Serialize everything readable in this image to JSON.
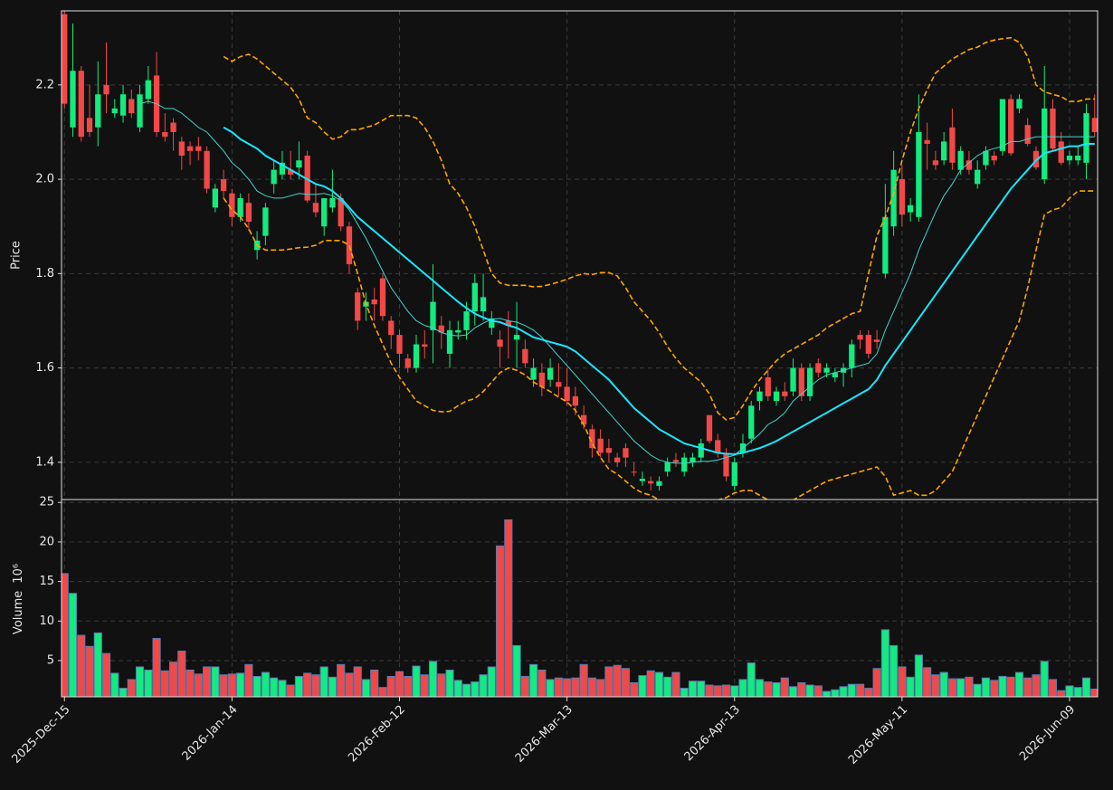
{
  "chart_data": {
    "type": "candlestick",
    "ylabel": "Price",
    "volume_label": "Volume",
    "volume_exponent": "10⁶",
    "categories": [
      "2025-Dec-15",
      null,
      null,
      null,
      null,
      null,
      null,
      null,
      null,
      null,
      null,
      null,
      null,
      null,
      null,
      null,
      null,
      null,
      null,
      null,
      "2026-Jan-14",
      null,
      null,
      null,
      null,
      null,
      null,
      null,
      null,
      null,
      null,
      null,
      null,
      null,
      null,
      null,
      null,
      null,
      null,
      null,
      "2026-Feb-12",
      null,
      null,
      null,
      null,
      null,
      null,
      null,
      null,
      null,
      null,
      null,
      null,
      null,
      null,
      null,
      null,
      null,
      null,
      null,
      "2026-Mar-13",
      null,
      null,
      null,
      null,
      null,
      null,
      null,
      null,
      null,
      null,
      null,
      null,
      null,
      null,
      null,
      null,
      null,
      null,
      null,
      "2026-Apr-13",
      null,
      null,
      null,
      null,
      null,
      null,
      null,
      null,
      null,
      null,
      null,
      null,
      null,
      null,
      null,
      null,
      null,
      null,
      null,
      "2026-May-11",
      null,
      null,
      null,
      null,
      null,
      null,
      null,
      null,
      null,
      null,
      null,
      null,
      null,
      null,
      null,
      null,
      null,
      null,
      null,
      "2026-Jun-09",
      null,
      null,
      null
    ],
    "open": [
      2.35,
      2.11,
      2.23,
      2.13,
      2.11,
      2.2,
      2.14,
      2.135,
      2.17,
      2.11,
      2.17,
      2.22,
      2.1,
      2.12,
      2.08,
      2.07,
      2.07,
      2.06,
      1.94,
      2,
      1.97,
      1.92,
      1.95,
      1.85,
      1.88,
      1.99,
      2.01,
      2.02,
      2.025,
      2.05,
      1.95,
      1.9,
      1.94,
      1.96,
      1.9,
      1.76,
      1.73,
      1.745,
      1.79,
      1.7,
      1.67,
      1.62,
      1.6,
      1.65,
      1.68,
      1.69,
      1.63,
      1.675,
      1.68,
      1.72,
      1.72,
      1.685,
      1.66,
      1.7,
      1.66,
      1.64,
      1.575,
      1.59,
      1.575,
      1.57,
      1.56,
      1.54,
      1.5,
      1.47,
      1.45,
      1.43,
      1.41,
      1.43,
      1.38,
      1.36,
      1.36,
      1.35,
      1.38,
      1.405,
      1.38,
      1.4,
      1.41,
      1.5,
      1.447,
      1.42,
      1.35,
      1.42,
      1.45,
      1.53,
      1.58,
      1.53,
      1.55,
      1.55,
      1.6,
      1.54,
      1.61,
      1.59,
      1.58,
      1.59,
      1.6,
      1.67,
      1.67,
      1.66,
      1.8,
      1.9,
      2,
      1.93,
      1.92,
      2.083,
      2.04,
      2.04,
      2.11,
      2.02,
      2.04,
      1.99,
      2.03,
      2.05,
      2.06,
      2.17,
      2.15,
      2.115,
      2.06,
      2,
      2.15,
      2.08,
      2.04,
      2.04,
      2.035,
      2.13
    ],
    "high": [
      2.36,
      2.33,
      2.24,
      2.2,
      2.25,
      2.29,
      2.17,
      2.2,
      2.19,
      2.2,
      2.24,
      2.27,
      2.14,
      2.13,
      2.09,
      2.08,
      2.09,
      2.07,
      1.99,
      2.02,
      1.98,
      1.97,
      1.97,
      1.89,
      1.95,
      2.04,
      2.06,
      2.06,
      2.08,
      2.06,
      1.99,
      1.96,
      2.02,
      1.97,
      1.91,
      1.77,
      1.76,
      1.77,
      1.8,
      1.71,
      1.68,
      1.63,
      1.67,
      1.68,
      1.82,
      1.71,
      1.7,
      1.7,
      1.74,
      1.8,
      1.8,
      1.72,
      1.68,
      1.72,
      1.74,
      1.66,
      1.62,
      1.61,
      1.62,
      1.61,
      1.6,
      1.56,
      1.52,
      1.48,
      1.47,
      1.45,
      1.42,
      1.44,
      1.4,
      1.38,
      1.37,
      1.37,
      1.41,
      1.42,
      1.42,
      1.42,
      1.45,
      1.5,
      1.46,
      1.43,
      1.41,
      1.46,
      1.53,
      1.56,
      1.6,
      1.56,
      1.57,
      1.62,
      1.61,
      1.61,
      1.62,
      1.61,
      1.6,
      1.61,
      1.66,
      1.68,
      1.68,
      1.68,
      1.99,
      2.06,
      2.03,
      1.96,
      2.18,
      2.12,
      2.06,
      2.1,
      2.15,
      2.07,
      2.06,
      2.04,
      2.07,
      2.06,
      2.17,
      2.18,
      2.18,
      2.13,
      2.07,
      2.24,
      2.17,
      2.1,
      2.06,
      2.07,
      2.16,
      2.18
    ],
    "low": [
      2.15,
      2.09,
      2.08,
      2.09,
      2.07,
      2.14,
      2.13,
      2.12,
      2.13,
      2.1,
      2.16,
      2.09,
      2.08,
      2.06,
      2.02,
      2.03,
      2.04,
      1.97,
      1.93,
      1.96,
      1.9,
      1.91,
      1.89,
      1.83,
      1.86,
      1.97,
      2,
      2,
      2,
      1.95,
      1.92,
      1.88,
      1.93,
      1.89,
      1.8,
      1.68,
      1.7,
      1.7,
      1.7,
      1.64,
      1.6,
      1.59,
      1.59,
      1.62,
      1.61,
      1.64,
      1.6,
      1.66,
      1.66,
      1.69,
      1.7,
      1.67,
      1.6,
      1.62,
      1.6,
      1.6,
      1.56,
      1.54,
      1.56,
      1.54,
      1.52,
      1.5,
      1.47,
      1.41,
      1.41,
      1.4,
      1.39,
      1.39,
      1.37,
      1.35,
      1.34,
      1.34,
      1.37,
      1.39,
      1.37,
      1.39,
      1.4,
      1.44,
      1.41,
      1.36,
      1.34,
      1.41,
      1.44,
      1.51,
      1.53,
      1.52,
      1.53,
      1.54,
      1.53,
      1.53,
      1.58,
      1.58,
      1.57,
      1.56,
      1.58,
      1.64,
      1.62,
      1.64,
      1.79,
      1.88,
      1.9,
      1.91,
      1.91,
      2.02,
      2.02,
      2.03,
      2.02,
      2.01,
      2.01,
      1.98,
      2.02,
      2.03,
      2.05,
      2.05,
      2.14,
      2.07,
      2.02,
      1.99,
      2.06,
      2.03,
      2.03,
      2.03,
      2,
      2.09
    ],
    "close": [
      2.16,
      2.23,
      2.09,
      2.1,
      2.18,
      2.18,
      2.15,
      2.18,
      2.14,
      2.18,
      2.21,
      2.1,
      2.09,
      2.1,
      2.05,
      2.06,
      2.06,
      1.98,
      1.98,
      1.975,
      1.92,
      1.96,
      1.91,
      1.87,
      1.94,
      2.02,
      2.035,
      2.01,
      2.04,
      1.955,
      1.93,
      1.96,
      1.96,
      1.9,
      1.82,
      1.7,
      1.74,
      1.735,
      1.71,
      1.67,
      1.63,
      1.6,
      1.65,
      1.645,
      1.74,
      1.675,
      1.68,
      1.68,
      1.72,
      1.78,
      1.75,
      1.705,
      1.645,
      1.69,
      1.67,
      1.61,
      1.6,
      1.56,
      1.6,
      1.56,
      1.53,
      1.52,
      1.48,
      1.43,
      1.42,
      1.42,
      1.4,
      1.41,
      1.378,
      1.365,
      1.355,
      1.36,
      1.4,
      1.4,
      1.41,
      1.41,
      1.44,
      1.445,
      1.42,
      1.37,
      1.4,
      1.44,
      1.52,
      1.55,
      1.54,
      1.55,
      1.54,
      1.6,
      1.54,
      1.6,
      1.59,
      1.6,
      1.59,
      1.6,
      1.65,
      1.66,
      1.63,
      1.655,
      1.92,
      2.02,
      1.925,
      1.945,
      2.1,
      2.075,
      2.03,
      2.08,
      2.035,
      2.06,
      2.02,
      2.02,
      2.06,
      2.04,
      2.17,
      2.055,
      2.17,
      2.075,
      2.025,
      2.15,
      2.065,
      2.035,
      2.05,
      2.05,
      2.14,
      2.1
    ],
    "volume": [
      16,
      13.5,
      8.2,
      6.8,
      8.5,
      5.9,
      3.4,
      1.5,
      2.6,
      4.2,
      3.8,
      7.8,
      3.7,
      4.8,
      6.2,
      3.8,
      3.3,
      4.2,
      4.2,
      3.2,
      3.3,
      3.4,
      4.5,
      3,
      3.5,
      2.8,
      2.5,
      1.9,
      3,
      3.4,
      3.2,
      4.2,
      2.9,
      4.5,
      3.4,
      4.2,
      2.6,
      3.8,
      1.6,
      3,
      3.6,
      3,
      4.3,
      3.2,
      4.9,
      3.3,
      3.8,
      2.5,
      2,
      2.3,
      3.2,
      4.2,
      19.5,
      22.8,
      6.9,
      3,
      4.5,
      3.8,
      2.6,
      2.8,
      2.7,
      2.8,
      4.5,
      2.8,
      2.6,
      4.2,
      4.4,
      4,
      2.2,
      3.1,
      3.7,
      3.5,
      2.9,
      3.5,
      1.5,
      2.4,
      2.4,
      1.9,
      1.8,
      1.9,
      1.8,
      2.6,
      4.7,
      2.6,
      2.3,
      2.2,
      2.8,
      1.7,
      2.2,
      1.9,
      1.8,
      1.1,
      1.3,
      1.7,
      2,
      2,
      1.5,
      4,
      8.9,
      6.9,
      4.2,
      2.9,
      5.7,
      4.1,
      3.2,
      3.5,
      2.7,
      2.7,
      2.9,
      2,
      2.8,
      2.5,
      3,
      2.9,
      3.5,
      2.8,
      3.2,
      4.9,
      2.6,
      1.2,
      1.8,
      1.6,
      2.8,
      1.4
    ],
    "series": [
      {
        "color": "#3fd6cf",
        "width": 1,
        "values": [
          null,
          null,
          null,
          null,
          null,
          null,
          null,
          null,
          null,
          2.16,
          2.165,
          2.16,
          2.15,
          2.15,
          2.14,
          2.125,
          2.11,
          2.1,
          2.08,
          2.06,
          2.035,
          2.02,
          2,
          1.975,
          1.965,
          1.96,
          1.96,
          1.965,
          1.97,
          1.968,
          1.968,
          1.97,
          1.965,
          1.955,
          1.935,
          1.905,
          1.875,
          1.84,
          1.805,
          1.77,
          1.745,
          1.72,
          1.7,
          1.69,
          1.685,
          1.675,
          1.67,
          1.668,
          1.67,
          1.685,
          1.695,
          1.703,
          1.705,
          1.7,
          1.697,
          1.69,
          1.68,
          1.665,
          1.645,
          1.625,
          1.605,
          1.585,
          1.565,
          1.545,
          1.525,
          1.505,
          1.485,
          1.465,
          1.445,
          1.43,
          1.415,
          1.405,
          1.4,
          1.398,
          1.398,
          1.4,
          1.402,
          1.402,
          1.405,
          1.41,
          1.415,
          1.43,
          1.445,
          1.46,
          1.48,
          1.49,
          1.505,
          1.53,
          1.545,
          1.56,
          1.575,
          1.585,
          1.59,
          1.595,
          1.6,
          1.605,
          1.61,
          1.63,
          1.68,
          1.72,
          1.76,
          1.8,
          1.85,
          1.89,
          1.93,
          1.965,
          1.99,
          2.02,
          2.035,
          2.05,
          2.06,
          2.065,
          2.07,
          2.08,
          2.08,
          2.085,
          2.09,
          2.09,
          2.09,
          2.09,
          2.09,
          2.09,
          2.09,
          2.09
        ]
      },
      {
        "color": "#19e6ff",
        "width": 2,
        "values": [
          null,
          null,
          null,
          null,
          null,
          null,
          null,
          null,
          null,
          null,
          null,
          null,
          null,
          null,
          null,
          null,
          null,
          null,
          null,
          2.11,
          2.1,
          2.085,
          2.075,
          2.065,
          2.05,
          2.04,
          2.03,
          2.02,
          2.01,
          2,
          1.99,
          1.985,
          1.975,
          1.96,
          1.94,
          1.92,
          1.905,
          1.89,
          1.875,
          1.86,
          1.845,
          1.83,
          1.815,
          1.8,
          1.785,
          1.77,
          1.755,
          1.74,
          1.727,
          1.715,
          1.707,
          1.7,
          1.697,
          1.69,
          1.685,
          1.675,
          1.665,
          1.66,
          1.655,
          1.65,
          1.645,
          1.635,
          1.62,
          1.605,
          1.59,
          1.575,
          1.555,
          1.535,
          1.515,
          1.5,
          1.485,
          1.47,
          1.46,
          1.45,
          1.44,
          1.435,
          1.43,
          1.425,
          1.42,
          1.418,
          1.417,
          1.42,
          1.425,
          1.43,
          1.437,
          1.445,
          1.455,
          1.465,
          1.475,
          1.485,
          1.495,
          1.505,
          1.515,
          1.525,
          1.535,
          1.545,
          1.555,
          1.575,
          1.605,
          1.63,
          1.655,
          1.68,
          1.705,
          1.73,
          1.755,
          1.78,
          1.805,
          1.83,
          1.855,
          1.88,
          1.905,
          1.93,
          1.955,
          1.98,
          2,
          2.02,
          2.04,
          2.055,
          2.06,
          2.065,
          2.07,
          2.07,
          2.075,
          2.075
        ]
      },
      {
        "color": "#ffa500",
        "width": 1.6,
        "dashed": true,
        "values": [
          null,
          null,
          null,
          null,
          null,
          null,
          null,
          null,
          null,
          null,
          null,
          null,
          null,
          null,
          null,
          null,
          null,
          null,
          null,
          2.26,
          2.25,
          2.26,
          2.265,
          2.255,
          2.24,
          2.225,
          2.21,
          2.195,
          2.17,
          2.13,
          2.12,
          2.1,
          2.085,
          2.09,
          2.105,
          2.105,
          2.11,
          2.115,
          2.125,
          2.135,
          2.135,
          2.135,
          2.13,
          2.11,
          2.08,
          2.04,
          1.99,
          1.97,
          1.94,
          1.9,
          1.85,
          1.8,
          1.78,
          1.775,
          1.775,
          1.775,
          1.772,
          1.773,
          1.777,
          1.782,
          1.788,
          1.795,
          1.8,
          1.798,
          1.802,
          1.802,
          1.795,
          1.77,
          1.74,
          1.72,
          1.7,
          1.675,
          1.645,
          1.62,
          1.6,
          1.585,
          1.57,
          1.545,
          1.505,
          1.49,
          1.495,
          1.52,
          1.55,
          1.575,
          1.595,
          1.615,
          1.63,
          1.64,
          1.65,
          1.66,
          1.67,
          1.685,
          1.695,
          1.705,
          1.715,
          1.72,
          1.8,
          1.88,
          1.92,
          1.97,
          2.04,
          2.1,
          2.15,
          2.19,
          2.225,
          2.24,
          2.255,
          2.265,
          2.275,
          2.28,
          2.29,
          2.295,
          2.298,
          2.3,
          2.29,
          2.26,
          2.2,
          2.185,
          2.18,
          2.175,
          2.165,
          2.165,
          2.17,
          2.17
        ]
      },
      {
        "color": "#ffa500",
        "width": 1.6,
        "dashed": true,
        "values": [
          null,
          null,
          null,
          null,
          null,
          null,
          null,
          null,
          null,
          null,
          null,
          null,
          null,
          null,
          null,
          null,
          null,
          null,
          null,
          1.96,
          1.935,
          1.92,
          1.895,
          1.86,
          1.85,
          1.85,
          1.85,
          1.852,
          1.855,
          1.856,
          1.86,
          1.87,
          1.87,
          1.87,
          1.86,
          1.8,
          1.735,
          1.69,
          1.65,
          1.61,
          1.58,
          1.555,
          1.53,
          1.52,
          1.51,
          1.507,
          1.508,
          1.52,
          1.53,
          1.535,
          1.55,
          1.57,
          1.59,
          1.6,
          1.595,
          1.585,
          1.57,
          1.56,
          1.55,
          1.538,
          1.528,
          1.51,
          1.48,
          1.44,
          1.41,
          1.385,
          1.375,
          1.36,
          1.345,
          1.335,
          1.33,
          1.32,
          1.31,
          1.3,
          1.29,
          1.29,
          1.3,
          1.31,
          1.32,
          1.325,
          1.335,
          1.34,
          1.34,
          1.33,
          1.32,
          1.31,
          1.315,
          1.32,
          1.33,
          1.34,
          1.35,
          1.36,
          1.365,
          1.37,
          1.375,
          1.38,
          1.385,
          1.39,
          1.37,
          1.33,
          1.335,
          1.34,
          1.33,
          1.33,
          1.34,
          1.36,
          1.38,
          1.42,
          1.46,
          1.5,
          1.54,
          1.58,
          1.62,
          1.66,
          1.7,
          1.77,
          1.85,
          1.925,
          1.935,
          1.94,
          1.96,
          1.975,
          1.975,
          1.975
        ]
      }
    ],
    "up_color": "#12eb80",
    "down_color": "#f24848",
    "volume_edge": "#5a7bb0",
    "ylim": [
      1.321,
      2.357
    ],
    "yticks": [
      1.4,
      1.6,
      1.8,
      {
        "value": 2,
        "label": "2.0"
      },
      2.2
    ],
    "volume_ylim": [
      0.42,
      25.37
    ],
    "volume_yticks": [
      5,
      10,
      15,
      20,
      25
    ],
    "grid": true
  }
}
